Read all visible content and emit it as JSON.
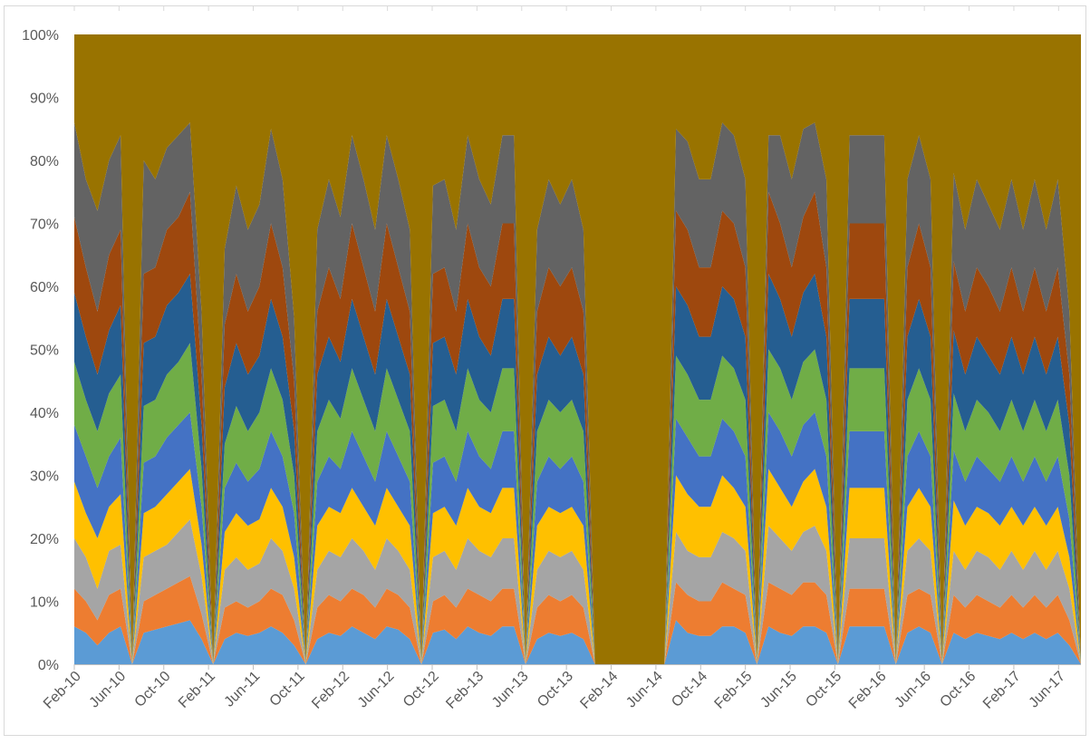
{
  "chart_data": {
    "type": "area",
    "stacking": "percent",
    "grid": false,
    "legend": "none",
    "y_ticks": [
      "0%",
      "10%",
      "20%",
      "30%",
      "40%",
      "50%",
      "60%",
      "70%",
      "80%",
      "90%",
      "100%"
    ],
    "ylim": [
      0,
      100
    ],
    "x_tick_labels": [
      "Feb-10",
      "Jun-10",
      "Oct-10",
      "Feb-11",
      "Jun-11",
      "Oct-11",
      "Feb-12",
      "Jun-12",
      "Oct-12",
      "Feb-13",
      "Jun-13",
      "Oct-13",
      "Feb-14",
      "Jun-14",
      "Oct-14",
      "Feb-15",
      "Jun-15",
      "Oct-15",
      "Feb-16",
      "Jun-16",
      "Oct-16",
      "Feb-17",
      "Jun-17"
    ],
    "x_start": "2010-02",
    "x_end": "2017-08",
    "series_colors": [
      "#5B9BD5",
      "#ED7D31",
      "#A5A5A5",
      "#FFC000",
      "#4472C4",
      "#70AD47",
      "#255E91",
      "#9E480E",
      "#636363",
      "#997300"
    ],
    "boundaries": [
      [
        6,
        5,
        3,
        5,
        6,
        0,
        5,
        5.5,
        6,
        6.5,
        7,
        4,
        0,
        4,
        5,
        4.5,
        5,
        6,
        5,
        3,
        0,
        4,
        5,
        4.5,
        6,
        5,
        4,
        6,
        5.5,
        4,
        0,
        5,
        5.5,
        4,
        6,
        5,
        4.5,
        6,
        6,
        0,
        4,
        5,
        4.5,
        5,
        4,
        0,
        0,
        0,
        0,
        0,
        0,
        0,
        7,
        5,
        4.5,
        4.5,
        6,
        6,
        5,
        0,
        6,
        5,
        4.5,
        6,
        6,
        5,
        0,
        6,
        6,
        6,
        6,
        0,
        5,
        6,
        5,
        0,
        5,
        4,
        5,
        4.5,
        4,
        5,
        4,
        5,
        4,
        5,
        3,
        0
      ],
      [
        12,
        10,
        7,
        11,
        12,
        0,
        10,
        11,
        12,
        13,
        14,
        8,
        0,
        9,
        10,
        9,
        10,
        12,
        11,
        7,
        0,
        9,
        11,
        10,
        12,
        11,
        9,
        12,
        11,
        9,
        0,
        10,
        11,
        9,
        12,
        11,
        10,
        12,
        12,
        0,
        9,
        11,
        10,
        11,
        9,
        0,
        0,
        0,
        0,
        0,
        0,
        0,
        13,
        11,
        10,
        10,
        13,
        12,
        11,
        0,
        13,
        12,
        11,
        13,
        13,
        11,
        0,
        12,
        12,
        12,
        12,
        0,
        11,
        12,
        11,
        0,
        11,
        9,
        11,
        10,
        9,
        11,
        9,
        11,
        9,
        11,
        7,
        0
      ],
      [
        20,
        17,
        12,
        18,
        19,
        0,
        17,
        18,
        19,
        21,
        23,
        14,
        0,
        15,
        17,
        15,
        16,
        20,
        18,
        12,
        0,
        15,
        18,
        17,
        20,
        18,
        15,
        20,
        18,
        15,
        0,
        17,
        18,
        15,
        20,
        18,
        17,
        20,
        20,
        0,
        15,
        18,
        17,
        18,
        15,
        0,
        0,
        0,
        0,
        0,
        0,
        0,
        21,
        18,
        17,
        17,
        21,
        20,
        18,
        0,
        22,
        20,
        18,
        21,
        22,
        18,
        0,
        20,
        20,
        20,
        20,
        0,
        18,
        20,
        18,
        0,
        18,
        15,
        18,
        17,
        15,
        18,
        15,
        18,
        15,
        18,
        12,
        0
      ],
      [
        29,
        24,
        20,
        25,
        27,
        0,
        24,
        25,
        27,
        29,
        31,
        19,
        0,
        21,
        24,
        22,
        23,
        28,
        25,
        17,
        0,
        22,
        25,
        24,
        28,
        25,
        22,
        28,
        25,
        22,
        0,
        24,
        25,
        22,
        28,
        25,
        24,
        28,
        28,
        0,
        22,
        25,
        24,
        25,
        22,
        0,
        0,
        0,
        0,
        0,
        0,
        0,
        30,
        27,
        25,
        25,
        30,
        28,
        25,
        0,
        31,
        28,
        25,
        29,
        31,
        25,
        0,
        28,
        28,
        28,
        28,
        0,
        25,
        28,
        25,
        0,
        26,
        22,
        25,
        24,
        22,
        25,
        22,
        25,
        22,
        25,
        17,
        0
      ],
      [
        38,
        33,
        28,
        33,
        36,
        0,
        32,
        33,
        36,
        38,
        40,
        25,
        0,
        28,
        32,
        29,
        31,
        37,
        33,
        24,
        0,
        29,
        33,
        31,
        37,
        33,
        29,
        37,
        33,
        29,
        0,
        32,
        33,
        29,
        37,
        33,
        31,
        37,
        37,
        0,
        29,
        33,
        31,
        33,
        29,
        0,
        0,
        0,
        0,
        0,
        0,
        0,
        39,
        36,
        33,
        33,
        39,
        37,
        33,
        0,
        40,
        37,
        33,
        38,
        40,
        33,
        0,
        37,
        37,
        37,
        37,
        0,
        33,
        37,
        33,
        0,
        34,
        29,
        33,
        31,
        29,
        33,
        29,
        33,
        29,
        33,
        23,
        0
      ],
      [
        48,
        42,
        37,
        43,
        46,
        0,
        41,
        42,
        46,
        48,
        51,
        31,
        0,
        35,
        41,
        37,
        40,
        47,
        42,
        30,
        0,
        37,
        42,
        39,
        47,
        42,
        37,
        47,
        42,
        37,
        0,
        41,
        42,
        37,
        47,
        42,
        40,
        47,
        47,
        0,
        37,
        42,
        40,
        42,
        37,
        0,
        0,
        0,
        0,
        0,
        0,
        0,
        49,
        46,
        42,
        42,
        49,
        47,
        42,
        0,
        50,
        47,
        42,
        48,
        50,
        42,
        0,
        47,
        47,
        47,
        47,
        0,
        42,
        47,
        42,
        0,
        43,
        37,
        42,
        40,
        37,
        42,
        37,
        42,
        37,
        42,
        30,
        0
      ],
      [
        59,
        52,
        46,
        53,
        57,
        0,
        51,
        52,
        57,
        59,
        62,
        38,
        0,
        44,
        51,
        46,
        49,
        58,
        52,
        37,
        0,
        46,
        52,
        48,
        58,
        52,
        46,
        58,
        52,
        46,
        0,
        51,
        52,
        46,
        58,
        52,
        49,
        58,
        58,
        0,
        46,
        52,
        49,
        52,
        46,
        0,
        0,
        0,
        0,
        0,
        0,
        0,
        60,
        57,
        52,
        52,
        60,
        58,
        52,
        0,
        62,
        58,
        52,
        59,
        62,
        52,
        0,
        58,
        58,
        58,
        58,
        0,
        52,
        58,
        52,
        0,
        53,
        46,
        52,
        49,
        46,
        52,
        46,
        52,
        46,
        52,
        38,
        0
      ],
      [
        71,
        63,
        56,
        65,
        69,
        0,
        62,
        63,
        69,
        71,
        75,
        46,
        0,
        54,
        62,
        56,
        60,
        70,
        63,
        45,
        0,
        56,
        63,
        58,
        70,
        63,
        56,
        70,
        63,
        56,
        0,
        62,
        63,
        56,
        70,
        63,
        60,
        70,
        70,
        0,
        56,
        63,
        60,
        63,
        56,
        0,
        0,
        0,
        0,
        0,
        0,
        0,
        72,
        69,
        63,
        63,
        72,
        70,
        63,
        0,
        75,
        70,
        63,
        71,
        75,
        63,
        0,
        70,
        70,
        70,
        70,
        0,
        63,
        70,
        63,
        0,
        64,
        56,
        63,
        60,
        56,
        63,
        56,
        63,
        56,
        63,
        46,
        0
      ],
      [
        86,
        77,
        72,
        80,
        84,
        0,
        80,
        77,
        82,
        84,
        86,
        56,
        0,
        66,
        76,
        69,
        73,
        85,
        77,
        55,
        0,
        69,
        77,
        71,
        84,
        77,
        69,
        84,
        77,
        69,
        0,
        76,
        77,
        69,
        84,
        77,
        73,
        84,
        84,
        0,
        69,
        77,
        73,
        77,
        69,
        0,
        0,
        0,
        0,
        0,
        0,
        0,
        85,
        83,
        77,
        77,
        86,
        84,
        77,
        0,
        84,
        84,
        77,
        85,
        86,
        77,
        0,
        84,
        84,
        84,
        84,
        0,
        77,
        84,
        77,
        0,
        78,
        69,
        77,
        73,
        69,
        77,
        69,
        77,
        69,
        77,
        56,
        0
      ]
    ]
  }
}
